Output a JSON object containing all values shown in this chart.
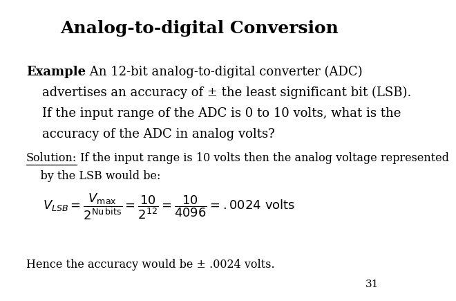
{
  "title": "Analog-to-digital Conversion",
  "title_fontsize": 18,
  "title_fontweight": "bold",
  "bg_color": "#ffffff",
  "text_color": "#000000",
  "page_number": "31",
  "example_bold": "Example",
  "example_line1": " An 12-bit analog-to-digital converter (ADC)",
  "example_line2": "    advertises an accuracy of ± the least significant bit (LSB).",
  "example_line3": "    If the input range of the ADC is 0 to 10 volts, what is the",
  "example_line4": "    accuracy of the ADC in analog volts?",
  "solution_underline": "Solution:",
  "solution_line1": " If the input range is 10 volts then the analog voltage represented",
  "solution_line2": "    by the LSB would be:",
  "conclusion": "Hence the accuracy would be ± .0024 volts.",
  "example_fontsize": 13,
  "solution_fontsize": 11.5,
  "conclusion_fontsize": 11.5,
  "formula_fontsize": 13,
  "page_fontsize": 11
}
